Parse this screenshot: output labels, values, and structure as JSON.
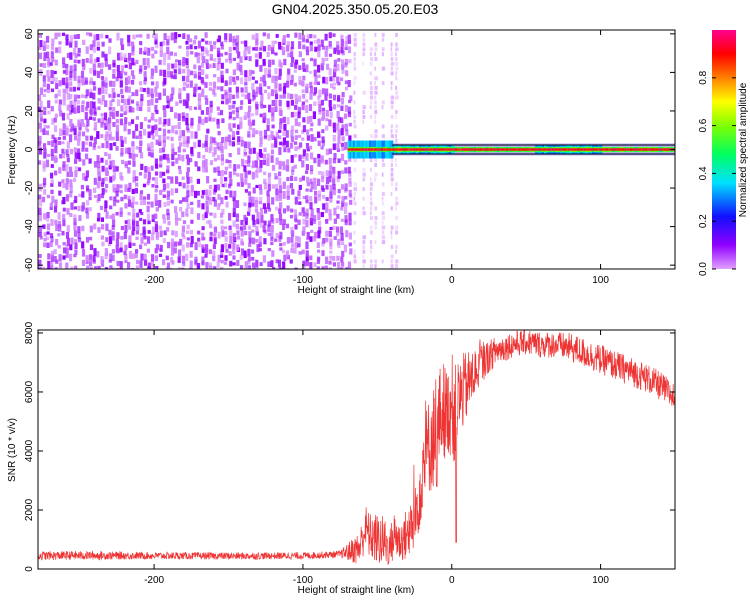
{
  "figure": {
    "title": "GN04.2025.350.05.20.E03"
  },
  "chart_data": [
    {
      "type": "heatmap",
      "title": "GN04.2025.350.05.20.E03",
      "xlabel": "Height of straight line (km)",
      "ylabel": "Frequency (Hz)",
      "xlim": [
        -278,
        150
      ],
      "ylim": [
        -62,
        62
      ],
      "xticks": [
        -200,
        -100,
        0,
        100
      ],
      "yticks": [
        -60,
        -40,
        -20,
        0,
        20,
        40,
        60
      ],
      "colorbar": {
        "label": "Normalized spectral amplitude",
        "range": [
          0,
          1
        ],
        "ticks": [
          "0.0",
          "0.2",
          "0.4",
          "0.6",
          "0.8"
        ],
        "colormap": "rainbow (magenta-violet-blue-cyan-green-yellow-orange-red-pink)"
      },
      "regions": [
        {
          "x_range": [
            -278,
            -70
          ],
          "freq_range": [
            -62,
            62
          ],
          "description": "broadband low-amplitude noise",
          "amplitude_level": 0.1
        },
        {
          "x_range": [
            -70,
            -40
          ],
          "freq_range": [
            -62,
            62
          ],
          "description": "sparse faint vertical streaks",
          "amplitude_level": 0.05
        },
        {
          "x_range": [
            -70,
            150
          ],
          "freq_center": 0,
          "freq_halfwidth": 3,
          "description": "narrowband signal near 0 Hz",
          "amplitude_level": 0.95
        }
      ],
      "grid": false
    },
    {
      "type": "line",
      "xlabel": "Height of straight line (km)",
      "ylabel": "SNR (10 * v/v)",
      "xlim": [
        -278,
        150
      ],
      "ylim": [
        0,
        8100
      ],
      "xticks": [
        -200,
        -100,
        0,
        100
      ],
      "yticks": [
        0,
        2000,
        4000,
        6000,
        8000
      ],
      "series": [
        {
          "color": "#ee3333",
          "x": [
            -278,
            -250,
            -200,
            -150,
            -100,
            -75,
            -62,
            -58,
            -55,
            -50,
            -45,
            -42,
            -38,
            -35,
            -30,
            -25,
            -22,
            -20,
            -18,
            -15,
            -12,
            -10,
            -8,
            -5,
            -3,
            0,
            2,
            5,
            10,
            15,
            20,
            25,
            30,
            40,
            50,
            60,
            70,
            80,
            90,
            100,
            110,
            120,
            130,
            140,
            150
          ],
          "y": [
            450,
            460,
            450,
            440,
            450,
            500,
            700,
            1400,
            1100,
            1000,
            900,
            700,
            1200,
            900,
            1200,
            1500,
            2600,
            3300,
            3700,
            4200,
            4500,
            4800,
            5200,
            5400,
            5300,
            5600,
            5200,
            5800,
            6200,
            6600,
            7000,
            7200,
            7400,
            7600,
            7700,
            7600,
            7600,
            7500,
            7300,
            7100,
            6900,
            6700,
            6500,
            6200,
            5800
          ],
          "noise_amplitude": [
            150,
            150,
            120,
            120,
            120,
            120,
            600,
            800,
            800,
            900,
            900,
            600,
            900,
            700,
            900,
            1000,
            1400,
            1500,
            1600,
            1700,
            1800,
            1900,
            1700,
            1700,
            1500,
            1800,
            1700,
            1400,
            1200,
            900,
            700,
            550,
            500,
            450,
            450,
            450,
            450,
            500,
            500,
            500,
            500,
            500,
            500,
            500,
            500
          ],
          "dips": [
            {
              "x": -20,
              "y": 2100
            },
            {
              "x": 3,
              "y": 900
            },
            {
              "x": -10,
              "y": 2800
            }
          ]
        }
      ],
      "grid": false
    }
  ]
}
